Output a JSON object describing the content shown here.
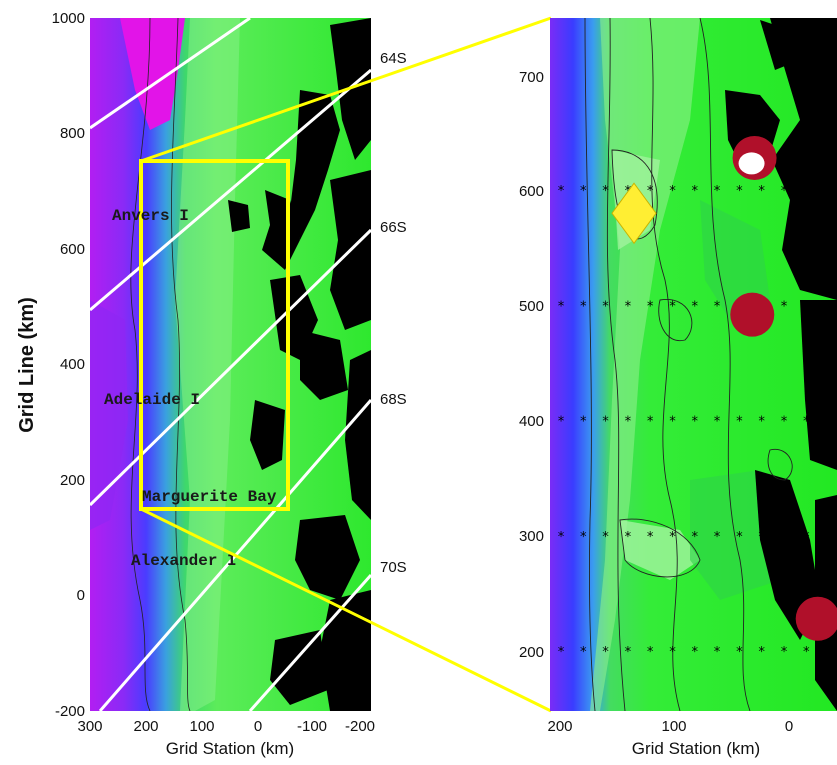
{
  "left_panel": {
    "y_axis_title": "Grid Line (km)",
    "x_axis_title": "Grid Station (km)",
    "y_ticks": [
      "1000",
      "800",
      "600",
      "400",
      "200",
      "0",
      "-200"
    ],
    "x_ticks": [
      "300",
      "200",
      "100",
      "0",
      "-100",
      "-200"
    ],
    "latitude_labels": [
      "64S",
      "66S",
      "68S",
      "70S"
    ],
    "place_labels": [
      "Anvers I",
      "Adelaide I",
      "Marguerite Bay",
      "Alexander I"
    ]
  },
  "right_panel": {
    "x_axis_title": "Grid Station (km)",
    "y_ticks": [
      "700",
      "600",
      "500",
      "400",
      "300",
      "200"
    ],
    "x_ticks": [
      "200",
      "100",
      "0"
    ],
    "station_grid_lines": [
      600,
      500,
      400,
      300,
      200
    ],
    "markers": [
      {
        "type": "red-circle",
        "station": 30,
        "line": 628
      },
      {
        "type": "white-dot",
        "station": 30,
        "line": 625
      },
      {
        "type": "red-circle",
        "station": 32,
        "line": 492
      },
      {
        "type": "red-circle",
        "station": -25,
        "line": 228
      },
      {
        "type": "yellow-diamond",
        "station": 135,
        "line": 580
      }
    ]
  },
  "colors": {
    "land": "#000000",
    "shelf": "#22e822",
    "shelf_light": "#6ef06a",
    "deep": "#3b2bff",
    "deepest": "#b81cf0",
    "zoom_box": "#ffff00",
    "latitude_lines": "#ffffff",
    "marker_red": "#b0102a",
    "marker_diamond": "#ffee33"
  }
}
